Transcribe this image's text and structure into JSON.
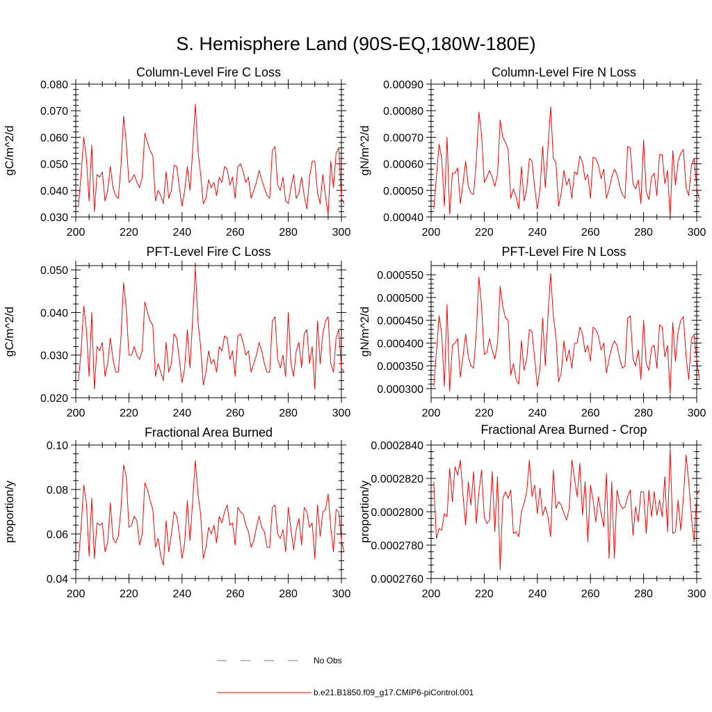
{
  "title": "S. Hemisphere Land (90S-EQ,180W-180E)",
  "legend": [
    {
      "label": "No Obs",
      "color": "#6b6bd6",
      "style": "dashed"
    },
    {
      "label": "b.e21.B1850.f09_g17.CMIP6-piControl.001",
      "color": "#ff0000",
      "style": "solid"
    }
  ],
  "chart_data": [
    {
      "type": "line",
      "title": "Column-Level Fire C Loss",
      "ylabel": "gC/m^2/d",
      "xlabel": "",
      "xlim": [
        200,
        300
      ],
      "ylim": [
        0.03,
        0.08
      ],
      "xticks": [
        200,
        220,
        240,
        260,
        280,
        300
      ],
      "xtick_labels": [
        "200",
        "220",
        "240",
        "260",
        "280",
        "300"
      ],
      "yticks": [
        0.03,
        0.04,
        0.05,
        0.06,
        0.07,
        0.08
      ],
      "ytick_labels": [
        "0.030",
        "0.040",
        "0.050",
        "0.060",
        "0.070",
        "0.080"
      ],
      "x_start": 201,
      "series": [
        {
          "name": "b.e21.B1850.f09_g17.CMIP6-piControl.001",
          "values": [
            0.034,
            0.046,
            0.06,
            0.052,
            0.036,
            0.057,
            0.032,
            0.046,
            0.045,
            0.047,
            0.036,
            0.04,
            0.049,
            0.041,
            0.038,
            0.037,
            0.049,
            0.068,
            0.058,
            0.043,
            0.044,
            0.046,
            0.043,
            0.041,
            0.045,
            0.0615,
            0.058,
            0.055,
            0.053,
            0.036,
            0.04,
            0.038,
            0.035,
            0.047,
            0.037,
            0.04,
            0.0495,
            0.049,
            0.041,
            0.034,
            0.04,
            0.049,
            0.04,
            0.055,
            0.0725,
            0.055,
            0.046,
            0.035,
            0.037,
            0.044,
            0.041,
            0.043,
            0.038,
            0.045,
            0.043,
            0.049,
            0.048,
            0.042,
            0.045,
            0.037,
            0.049,
            0.05,
            0.047,
            0.043,
            0.045,
            0.037,
            0.04,
            0.043,
            0.0475,
            0.044,
            0.041,
            0.038,
            0.037,
            0.055,
            0.0565,
            0.042,
            0.04,
            0.045,
            0.036,
            0.035,
            0.041,
            0.046,
            0.037,
            0.039,
            0.045,
            0.038,
            0.033,
            0.045,
            0.051,
            0.051,
            0.039,
            0.035,
            0.046,
            0.038,
            0.031,
            0.051,
            0.041,
            0.054,
            0.056,
            0.037,
            0.035
          ]
        }
      ]
    },
    {
      "type": "line",
      "title": "Column-Level Fire N Loss",
      "ylabel": "gN/m^2/d",
      "xlabel": "",
      "xlim": [
        200,
        300
      ],
      "ylim": [
        0.0004,
        0.0009
      ],
      "xticks": [
        200,
        220,
        240,
        260,
        280,
        300
      ],
      "xtick_labels": [
        "200",
        "220",
        "240",
        "260",
        "280",
        "300"
      ],
      "yticks": [
        0.0004,
        0.0005,
        0.0006,
        0.0007,
        0.0008,
        0.0009
      ],
      "ytick_labels": [
        "0.00040",
        "0.00050",
        "0.00060",
        "0.00070",
        "0.00080",
        "0.00090"
      ],
      "x_start": 201,
      "series": [
        {
          "name": "b.e21.B1850.f09_g17.CMIP6-piControl.001",
          "values": [
            0.00043,
            0.00055,
            0.000675,
            0.00062,
            0.00044,
            0.0007,
            0.00041,
            0.000565,
            0.000565,
            0.000585,
            0.00045,
            0.000525,
            0.00061,
            0.000515,
            0.00049,
            0.000485,
            0.00061,
            0.000795,
            0.00071,
            0.00053,
            0.00055,
            0.000575,
            0.00055,
            0.000515,
            0.00056,
            0.000765,
            0.0007,
            0.00068,
            0.000655,
            0.00047,
            0.000505,
            0.000475,
            0.00043,
            0.00059,
            0.00046,
            0.000505,
            0.00062,
            0.00061,
            0.00051,
            0.00043,
            0.000505,
            0.000665,
            0.00051,
            0.00066,
            0.000815,
            0.00062,
            0.000605,
            0.00044,
            0.00049,
            0.000575,
            0.00052,
            0.000545,
            0.00047,
            0.00057,
            0.00056,
            0.00063,
            0.000605,
            0.00054,
            0.00056,
            0.00047,
            0.000625,
            0.00062,
            0.000595,
            0.000545,
            0.00058,
            0.00047,
            0.000505,
            0.00055,
            0.00058,
            0.00056,
            0.000515,
            0.000485,
            0.00047,
            0.000665,
            0.00066,
            0.000525,
            0.000505,
            0.00054,
            0.00045,
            0.00069,
            0.000495,
            0.000465,
            0.00055,
            0.000565,
            0.00048,
            0.000635,
            0.000635,
            0.000525,
            0.000575,
            0.0004,
            0.00065,
            0.00052,
            0.00061,
            0.00064,
            0.000655,
            0.00051,
            0.00048,
            0.000595,
            0.00062,
            0.00051,
            0.000465
          ]
        }
      ]
    },
    {
      "type": "line",
      "title": "PFT-Level Fire C Loss",
      "ylabel": "gC/m^2/d",
      "xlabel": "",
      "xlim": [
        200,
        300
      ],
      "ylim": [
        0.02,
        0.051
      ],
      "xticks": [
        200,
        220,
        240,
        260,
        280,
        300
      ],
      "xtick_labels": [
        "200",
        "220",
        "240",
        "260",
        "280",
        "300"
      ],
      "yticks": [
        0.02,
        0.03,
        0.04,
        0.05
      ],
      "ytick_labels": [
        "0.020",
        "0.030",
        "0.040",
        "0.050"
      ],
      "x_start": 201,
      "series": [
        {
          "name": "b.e21.B1850.f09_g17.CMIP6-piControl.001",
          "values": [
            0.024,
            0.031,
            0.0415,
            0.036,
            0.025,
            0.04,
            0.022,
            0.032,
            0.031,
            0.033,
            0.025,
            0.028,
            0.034,
            0.029,
            0.026,
            0.026,
            0.034,
            0.047,
            0.041,
            0.03,
            0.03,
            0.032,
            0.03,
            0.029,
            0.031,
            0.0425,
            0.04,
            0.038,
            0.037,
            0.025,
            0.028,
            0.026,
            0.024,
            0.033,
            0.026,
            0.028,
            0.035,
            0.034,
            0.029,
            0.0235,
            0.027,
            0.036,
            0.027,
            0.0385,
            0.0505,
            0.038,
            0.032,
            0.023,
            0.026,
            0.031,
            0.028,
            0.029,
            0.026,
            0.032,
            0.031,
            0.0345,
            0.034,
            0.029,
            0.031,
            0.025,
            0.0345,
            0.035,
            0.033,
            0.03,
            0.031,
            0.026,
            0.028,
            0.03,
            0.033,
            0.031,
            0.028,
            0.026,
            0.026,
            0.038,
            0.039,
            0.029,
            0.027,
            0.03,
            0.025,
            0.04,
            0.028,
            0.025,
            0.031,
            0.033,
            0.027,
            0.035,
            0.036,
            0.028,
            0.032,
            0.022,
            0.038,
            0.028,
            0.035,
            0.038,
            0.039,
            0.028,
            0.026,
            0.034,
            0.036,
            0.027,
            0.026
          ]
        }
      ]
    },
    {
      "type": "line",
      "title": "PFT-Level Fire N Loss",
      "ylabel": "gN/m^2/d",
      "xlabel": "",
      "xlim": [
        200,
        300
      ],
      "ylim": [
        0.00028,
        0.00057
      ],
      "xticks": [
        200,
        220,
        240,
        260,
        280,
        300
      ],
      "xtick_labels": [
        "200",
        "220",
        "240",
        "260",
        "280",
        "300"
      ],
      "yticks": [
        0.0003,
        0.00035,
        0.0004,
        0.00045,
        0.0005,
        0.00055
      ],
      "ytick_labels": [
        "0.000300",
        "0.000350",
        "0.000400",
        "0.000450",
        "0.000500",
        "0.000550"
      ],
      "x_start": 201,
      "series": [
        {
          "name": "b.e21.B1850.f09_g17.CMIP6-piControl.001",
          "values": [
            0.000305,
            0.00038,
            0.00046,
            0.00042,
            0.000305,
            0.000485,
            0.000295,
            0.000395,
            0.0004,
            0.00041,
            0.000325,
            0.00037,
            0.00042,
            0.00037,
            0.00035,
            0.000345,
            0.00042,
            0.000545,
            0.00048,
            0.000375,
            0.00038,
            0.00041,
            0.000385,
            0.000365,
            0.0004,
            0.000525,
            0.00048,
            0.000455,
            0.00045,
            0.00033,
            0.000355,
            0.00032,
            0.00031,
            0.000405,
            0.00034,
            0.000365,
            0.00043,
            0.000425,
            0.000365,
            0.000305,
            0.000345,
            0.000455,
            0.00035,
            0.00046,
            0.000553,
            0.00046,
            0.000415,
            0.000315,
            0.000335,
            0.000405,
            0.00036,
            0.000385,
            0.000345,
            0.0004,
            0.0004,
            0.000435,
            0.00042,
            0.00038,
            0.000395,
            0.00036,
            0.000435,
            0.00043,
            0.000415,
            0.000385,
            0.0004,
            0.000335,
            0.000365,
            0.00039,
            0.000405,
            0.000395,
            0.000365,
            0.000345,
            0.00035,
            0.000455,
            0.00046,
            0.000365,
            0.00035,
            0.000385,
            0.00032,
            0.00045,
            0.000355,
            0.00034,
            0.00039,
            0.000395,
            0.000345,
            0.00044,
            0.000435,
            0.00037,
            0.000395,
            0.000288,
            0.000445,
            0.00036,
            0.000425,
            0.00045,
            0.000458,
            0.00037,
            0.00032,
            0.00041,
            0.000418,
            0.000365,
            0.00032
          ]
        }
      ]
    },
    {
      "type": "line",
      "title": "Fractional Area Burned",
      "ylabel": "proportion/y",
      "xlabel": "",
      "xlim": [
        200,
        300
      ],
      "ylim": [
        0.04,
        0.1
      ],
      "xticks": [
        200,
        220,
        240,
        260,
        280,
        300
      ],
      "xtick_labels": [
        "200",
        "220",
        "240",
        "260",
        "280",
        "300"
      ],
      "yticks": [
        0.04,
        0.06,
        0.08,
        0.1
      ],
      "ytick_labels": [
        "0.04",
        "0.06",
        "0.08",
        "0.10"
      ],
      "x_start": 201,
      "series": [
        {
          "name": "b.e21.B1850.f09_g17.CMIP6-piControl.001",
          "values": [
            0.048,
            0.063,
            0.082,
            0.074,
            0.05,
            0.076,
            0.049,
            0.065,
            0.064,
            0.065,
            0.052,
            0.056,
            0.074,
            0.058,
            0.056,
            0.059,
            0.071,
            0.091,
            0.086,
            0.063,
            0.064,
            0.068,
            0.066,
            0.055,
            0.06,
            0.083,
            0.08,
            0.075,
            0.071,
            0.054,
            0.058,
            0.05,
            0.046,
            0.066,
            0.052,
            0.06,
            0.07,
            0.068,
            0.06,
            0.049,
            0.056,
            0.075,
            0.057,
            0.075,
            0.093,
            0.078,
            0.069,
            0.049,
            0.054,
            0.063,
            0.06,
            0.064,
            0.056,
            0.068,
            0.065,
            0.07,
            0.073,
            0.064,
            0.065,
            0.055,
            0.072,
            0.07,
            0.069,
            0.064,
            0.061,
            0.054,
            0.057,
            0.063,
            0.068,
            0.063,
            0.061,
            0.054,
            0.054,
            0.072,
            0.073,
            0.06,
            0.058,
            0.062,
            0.052,
            0.072,
            0.062,
            0.053,
            0.062,
            0.067,
            0.055,
            0.072,
            0.07,
            0.063,
            0.065,
            0.049,
            0.073,
            0.059,
            0.07,
            0.071,
            0.078,
            0.063,
            0.052,
            0.071,
            0.07,
            0.057,
            0.052
          ]
        }
      ]
    },
    {
      "type": "line",
      "title": "Fractional Area Burned - Crop",
      "ylabel": "proportion/y",
      "xlabel": "",
      "xlim": [
        200,
        300
      ],
      "ylim": [
        0.000276,
        0.000284
      ],
      "xticks": [
        200,
        220,
        240,
        260,
        280,
        300
      ],
      "xtick_labels": [
        "200",
        "220",
        "240",
        "260",
        "280",
        "300"
      ],
      "yticks": [
        0.000276,
        0.000278,
        0.00028,
        0.000282,
        0.000284
      ],
      "ytick_labels": [
        "0.0002760",
        "0.0002780",
        "0.0002800",
        "0.0002820",
        "0.0002840"
      ],
      "x_start": 201,
      "series": [
        {
          "name": "b.e21.B1850.f09_g17.CMIP6-piControl.001",
          "values": [
            0.0002818,
            0.0002784,
            0.000279,
            0.0002789,
            0.0002799,
            0.0002797,
            0.0002826,
            0.0002806,
            0.0002827,
            0.0002822,
            0.0002831,
            0.000281,
            0.0002792,
            0.0002818,
            0.0002804,
            0.0002824,
            0.0002793,
            0.0002812,
            0.0002825,
            0.0002797,
            0.0002793,
            0.0002795,
            0.0002824,
            0.0002788,
            0.0002821,
            0.0002765,
            0.0002808,
            0.0002812,
            0.0002808,
            0.0002813,
            0.0002787,
            0.0002788,
            0.0002785,
            0.00028,
            0.0002805,
            0.0002812,
            0.0002831,
            0.0002809,
            0.0002816,
            0.0002799,
            0.0002814,
            0.0002798,
            0.0002803,
            0.0002797,
            0.0002785,
            0.0002825,
            0.0002802,
            0.0002806,
            0.0002804,
            0.0002799,
            0.0002795,
            0.0002802,
            0.0002831,
            0.000282,
            0.0002809,
            0.0002829,
            0.0002798,
            0.0002818,
            0.0002782,
            0.0002816,
            0.0002807,
            0.0002794,
            0.0002809,
            0.0002799,
            0.0002791,
            0.0002823,
            0.0002772,
            0.0002818,
            0.0002772,
            0.0002813,
            0.0002805,
            0.0002802,
            0.0002803,
            0.0002809,
            0.0002813,
            0.0002786,
            0.0002803,
            0.0002794,
            0.0002812,
            0.0002812,
            0.0002787,
            0.0002813,
            0.0002797,
            0.0002812,
            0.0002798,
            0.0002807,
            0.0002797,
            0.0002821,
            0.0002788,
            0.0002838,
            0.0002787,
            0.0002788,
            0.0002807,
            0.0002789,
            0.0002809,
            0.0002834,
            0.0002818,
            0.0002797,
            0.0002782,
            0.000281,
            0.0002813
          ]
        }
      ]
    }
  ]
}
